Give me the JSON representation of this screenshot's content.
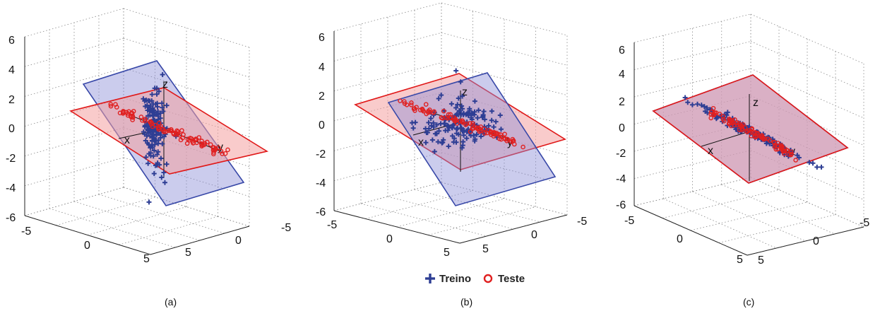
{
  "legend": {
    "train_label": "Treino",
    "test_label": "Teste",
    "train_color": "#2e3e94",
    "test_color": "#e02020"
  },
  "plane_colors": {
    "blue_fill": "#8c8ed8",
    "blue_edge": "#3848a8",
    "red_fill": "#f4a0a0",
    "red_edge": "#e01818"
  },
  "chart_data": [
    {
      "type": "scatter",
      "caption": "(a)",
      "zlim": [
        -6,
        6
      ],
      "xlim": [
        -5,
        5
      ],
      "ylim": [
        -5,
        5
      ],
      "z_ticks": [
        "6",
        "4",
        "2",
        "0",
        "-2",
        "-4",
        "-6"
      ],
      "x_ticks": [
        "-5",
        "0",
        "5"
      ],
      "y_ticks": [
        "-5",
        "0",
        "5"
      ],
      "axis_labels": {
        "x": "x",
        "y": "y",
        "z": "z"
      },
      "grid": true,
      "series": [
        {
          "name": "Treino",
          "marker": "plus",
          "spread": "vertical"
        },
        {
          "name": "Teste",
          "marker": "circle",
          "spread": "along-y"
        }
      ]
    },
    {
      "type": "scatter",
      "caption": "(b)",
      "zlim": [
        -6,
        6
      ],
      "xlim": [
        -5,
        5
      ],
      "ylim": [
        -5,
        5
      ],
      "z_ticks": [
        "6",
        "4",
        "2",
        "0",
        "-2",
        "-4",
        "-6"
      ],
      "x_ticks": [
        "-5",
        "0",
        "5"
      ],
      "y_ticks": [
        "-5",
        "0",
        "5"
      ],
      "axis_labels": {
        "x": "x",
        "y": "y",
        "z": "z"
      },
      "grid": true,
      "series": [
        {
          "name": "Treino",
          "marker": "plus",
          "spread": "cloud"
        },
        {
          "name": "Teste",
          "marker": "circle",
          "spread": "along-y"
        }
      ]
    },
    {
      "type": "scatter",
      "caption": "(c)",
      "zlim": [
        -6,
        6
      ],
      "xlim": [
        -5,
        5
      ],
      "ylim": [
        -5,
        5
      ],
      "z_ticks": [
        "6",
        "4",
        "2",
        "0",
        "-2",
        "-4",
        "-6"
      ],
      "x_ticks": [
        "-5",
        "0",
        "5"
      ],
      "y_ticks": [
        "-5",
        "0",
        "5"
      ],
      "axis_labels": {
        "x": "x",
        "y": "y",
        "z": "z"
      },
      "grid": true,
      "series": [
        {
          "name": "Treino",
          "marker": "plus",
          "spread": "along-y"
        },
        {
          "name": "Teste",
          "marker": "circle",
          "spread": "along-y"
        }
      ]
    }
  ]
}
